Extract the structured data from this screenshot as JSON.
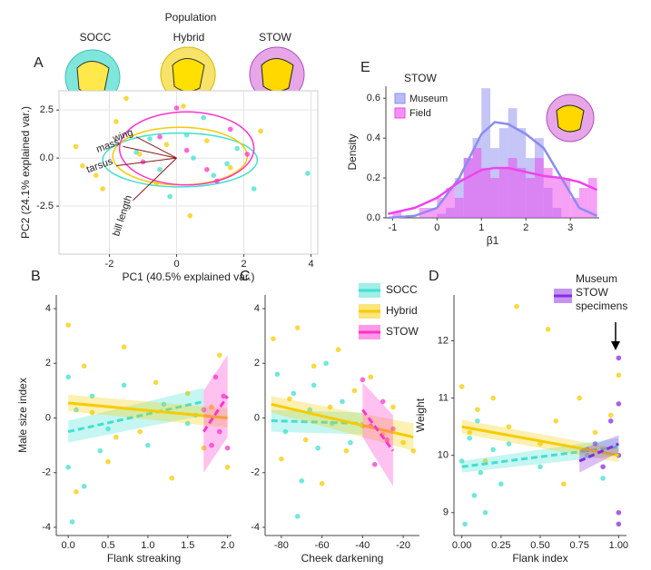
{
  "header": {
    "title": "Population",
    "groups": [
      "SOCC",
      "Hybrid",
      "STOW"
    ]
  },
  "chart_data": [
    {
      "type": "scatter",
      "label": "A",
      "xlabel": "PC1 (40.5% explained var.)",
      "ylabel": "PC2 (24.1% explained var.)",
      "xlim": [
        -3.5,
        4.2
      ],
      "xticks": [
        -2,
        0,
        2,
        4
      ],
      "ylim": [
        -5,
        3.5
      ],
      "yticks": [
        -2.5,
        {
          "value": 0,
          "label": "0.0"
        },
        2.5
      ],
      "grid": true,
      "series": [
        {
          "color": "#40e0d0",
          "x": [
            -1.2,
            -0.5,
            0.3,
            1.1,
            1.8,
            2.3,
            0.8,
            -0.2,
            1.5,
            3.9,
            0.5,
            -0.8
          ],
          "values": [
            0.3,
            -0.6,
            1.2,
            -0.9,
            0.5,
            -1.6,
            2.1,
            -2.0,
            -0.3,
            -0.8,
            0.0,
            1.0
          ],
          "ellipse": {
            "cx": 0.1,
            "cy": -0.1,
            "rx": 2.3,
            "ry": 1.4
          }
        },
        {
          "color": "#f5cc00",
          "x": [
            -3.0,
            -2.4,
            -1.8,
            -1.1,
            -0.6,
            0.2,
            0.9,
            1.6,
            -2.2,
            -1.5,
            0.4,
            2.5,
            -0.3,
            -2.8
          ],
          "values": [
            0.6,
            -0.9,
            1.9,
            0.2,
            -1.3,
            2.7,
            0.9,
            -0.5,
            -1.6,
            3.1,
            -3.0,
            1.4,
            0.7,
            -0.4
          ],
          "ellipse": {
            "cx": 0.1,
            "cy": 0.1,
            "rx": 2.0,
            "ry": 1.5
          }
        },
        {
          "color": "#ff33cc",
          "x": [
            -0.5,
            0.3,
            0.9,
            1.6,
            2.1,
            -1.0,
            0.0,
            1.2
          ],
          "values": [
            1.1,
            0.4,
            -0.6,
            1.5,
            0.2,
            -0.2,
            2.6,
            -1.2
          ],
          "ellipse": {
            "cx": 0.3,
            "cy": 0.5,
            "rx": 2.0,
            "ry": 1.9
          }
        }
      ],
      "loadings": [
        {
          "label": "wing",
          "x": -1.2,
          "y": 1.1
        },
        {
          "label": "mass",
          "x": -1.6,
          "y": 0.6
        },
        {
          "label": "tarsus",
          "x": -1.8,
          "y": -0.4
        },
        {
          "label": "bill length",
          "x": -1.3,
          "y": -2.2
        }
      ]
    },
    {
      "type": "histogram",
      "label": "E",
      "legend_title": "STOW",
      "xlabel": "β1",
      "ylabel": "Density",
      "xlim": [
        -1.15,
        3.65
      ],
      "xticks": [
        -1,
        0,
        1,
        2,
        3
      ],
      "ylim": [
        0,
        0.66
      ],
      "yticks": [
        {
          "value": 0,
          "label": "0.0"
        },
        0.2,
        0.4,
        0.6
      ],
      "bins": [
        -1.0,
        -0.8,
        -0.6,
        -0.4,
        -0.2,
        0.0,
        0.2,
        0.4,
        0.6,
        0.8,
        1.0,
        1.2,
        1.4,
        1.6,
        1.8,
        2.0,
        2.2,
        2.4,
        2.6,
        2.8,
        3.0,
        3.2,
        3.4,
        3.6
      ],
      "series": [
        {
          "name": "Museum",
          "color": "#8c8cf0",
          "values": [
            0,
            0,
            0,
            0,
            0,
            0.02,
            0.05,
            0.2,
            0.3,
            0.4,
            0.65,
            0.35,
            0.45,
            0.55,
            0.45,
            0.3,
            0.4,
            0.15,
            0.05,
            0,
            0,
            0,
            0
          ],
          "density": {
            "x": [
              -1.1,
              -0.5,
              0,
              0.5,
              1,
              1.3,
              1.6,
              2,
              2.4,
              2.8,
              3.2,
              3.6
            ],
            "y": [
              0,
              0.01,
              0.05,
              0.2,
              0.42,
              0.48,
              0.47,
              0.42,
              0.35,
              0.2,
              0.05,
              0.01
            ]
          }
        },
        {
          "name": "Field",
          "color": "#ee44ee",
          "values": [
            0.03,
            0,
            0,
            0.05,
            0.05,
            0.1,
            0.15,
            0.1,
            0.3,
            0.35,
            0.25,
            0.2,
            0.25,
            0.3,
            0.25,
            0.2,
            0.3,
            0.25,
            0.2,
            0.2,
            0.1,
            0.15,
            0.2
          ],
          "density": {
            "x": [
              -1.1,
              -0.5,
              0,
              0.5,
              1,
              1.3,
              1.6,
              2,
              2.4,
              2.8,
              3.2,
              3.6
            ],
            "y": [
              0.02,
              0.05,
              0.1,
              0.18,
              0.24,
              0.25,
              0.25,
              0.23,
              0.21,
              0.2,
              0.18,
              0.14
            ]
          }
        }
      ]
    },
    {
      "type": "scatter",
      "label": "B",
      "xlabel": "Flank streaking",
      "ylabel": "Male size index",
      "xlim": [
        -0.15,
        2.05
      ],
      "xticks": [
        {
          "value": 0,
          "label": "0.0"
        },
        0.5,
        {
          "value": 1,
          "label": "1.0"
        },
        1.5,
        {
          "value": 2,
          "label": "2.0"
        }
      ],
      "ylim": [
        -4.3,
        4.5
      ],
      "yticks": [
        -4,
        -2,
        0,
        2,
        4
      ],
      "series": [
        {
          "name": "SOCC",
          "color": "#40e0d0",
          "x": [
            0,
            0,
            0.1,
            0.2,
            0.3,
            0.5,
            0.7,
            1.0,
            1.2,
            1.5,
            1.6,
            0.05,
            0.4
          ],
          "values": [
            -1.8,
            1.5,
            0.3,
            -2.5,
            0.8,
            -0.4,
            1.2,
            -1.0,
            0.5,
            -0.2,
            0.1,
            -3.8,
            -1.2
          ],
          "fit": {
            "x": [
              0,
              1.7
            ],
            "y": [
              -0.5,
              0.6
            ],
            "se": [
              0.4,
              0.5
            ]
          }
        },
        {
          "name": "Hybrid",
          "color": "#f5cc00",
          "x": [
            0,
            0.1,
            0.2,
            0.3,
            0.5,
            0.7,
            0.9,
            1.1,
            1.3,
            1.5,
            1.7,
            1.9,
            2.0,
            1.8,
            0.6
          ],
          "values": [
            3.4,
            -2.7,
            1.9,
            0.2,
            -1.6,
            2.6,
            -0.5,
            1.3,
            -2.2,
            0.9,
            -1.1,
            2.3,
            -1.8,
            0.4,
            -0.7
          ],
          "fit": {
            "x": [
              0,
              2.0
            ],
            "y": [
              0.55,
              0.0
            ],
            "se": [
              0.3,
              0.35
            ]
          }
        },
        {
          "name": "STOW",
          "color": "#ff33cc",
          "x": [
            1.7,
            1.8,
            1.85,
            1.9,
            1.95,
            2.0
          ],
          "values": [
            0.3,
            -1.0,
            1.5,
            -0.5,
            0.8,
            -1.1
          ],
          "fit": {
            "x": [
              1.7,
              2.0
            ],
            "y": [
              -0.5,
              0.8
            ],
            "se": [
              1.5,
              1.5
            ]
          }
        }
      ]
    },
    {
      "type": "scatter",
      "label": "C",
      "xlabel": "Cheek darkening",
      "xlim": [
        -88,
        -12
      ],
      "xticks": [
        -80,
        -60,
        -40,
        -20
      ],
      "ylim": [
        -4.3,
        4.5
      ],
      "yticks": [
        -4,
        -2,
        0,
        2,
        4
      ],
      "series": [
        {
          "color": "#40e0d0",
          "x": [
            -82,
            -78,
            -74,
            -70,
            -66,
            -62,
            -58,
            -55,
            -50,
            -46,
            -72,
            -64
          ],
          "values": [
            1.6,
            -0.5,
            0.9,
            -2.3,
            0.3,
            -1.1,
            2.0,
            -0.2,
            0.6,
            -0.9,
            -3.6,
            1.2
          ],
          "fit": {
            "x": [
              -85,
              -40
            ],
            "y": [
              -0.1,
              -0.2
            ],
            "se": [
              0.4,
              0.4
            ]
          }
        },
        {
          "color": "#f5cc00",
          "x": [
            -84,
            -80,
            -76,
            -72,
            -68,
            -64,
            -60,
            -56,
            -52,
            -48,
            -44,
            -40,
            -36,
            -30,
            -25,
            -20,
            -15
          ],
          "values": [
            2.9,
            -1.5,
            0.7,
            3.3,
            -0.8,
            1.9,
            -2.4,
            0.4,
            2.5,
            -1.2,
            1.0,
            -0.3,
            1.5,
            -0.6,
            0.4,
            -0.9,
            -1.2
          ],
          "fit": {
            "x": [
              -85,
              -15
            ],
            "y": [
              0.5,
              -0.7
            ],
            "se": [
              0.3,
              0.5
            ]
          }
        },
        {
          "color": "#ff33cc",
          "x": [
            -40,
            -36,
            -34,
            -30,
            -28,
            -25
          ],
          "values": [
            1.4,
            -0.3,
            -1.7,
            0.6,
            -0.8,
            -0.4
          ],
          "fit": {
            "x": [
              -40,
              -25
            ],
            "y": [
              0.3,
              -1.2
            ],
            "se": [
              1.0,
              1.3
            ]
          }
        }
      ]
    },
    {
      "type": "scatter",
      "label": "D",
      "xlabel": "Flank index",
      "ylabel": "Weight",
      "xlim": [
        -0.05,
        1.05
      ],
      "xticks": [
        {
          "value": 0,
          "label": "0.00"
        },
        0.25,
        {
          "value": 0.5,
          "label": "0.50"
        },
        0.75,
        {
          "value": 1,
          "label": "1.00"
        }
      ],
      "ylim": [
        8.6,
        12.8
      ],
      "yticks": [
        9,
        10,
        11,
        12
      ],
      "series": [
        {
          "color": "#40e0d0",
          "x": [
            0,
            0.02,
            0.05,
            0.08,
            0.1,
            0.12,
            0.15,
            0.2,
            0.25,
            0.3,
            0.5,
            0.8,
            0.9
          ],
          "values": [
            9.9,
            8.8,
            10.3,
            9.3,
            10.6,
            9.7,
            9.0,
            10.1,
            9.5,
            10.2,
            9.8,
            10.0,
            9.6
          ],
          "fit": {
            "x": [
              0,
              1
            ],
            "y": [
              9.8,
              10.15
            ],
            "se": [
              0.1,
              0.15
            ]
          }
        },
        {
          "color": "#f5cc00",
          "x": [
            0,
            0.05,
            0.1,
            0.15,
            0.2,
            0.3,
            0.35,
            0.5,
            0.55,
            0.6,
            0.75,
            0.85,
            0.95,
            1.0,
            0.65
          ],
          "values": [
            11.2,
            10.4,
            10.8,
            9.9,
            11.0,
            10.5,
            12.6,
            10.2,
            12.2,
            10.6,
            11.0,
            10.4,
            10.7,
            11.4,
            9.5
          ],
          "fit": {
            "x": [
              0,
              1
            ],
            "y": [
              10.5,
              10.0
            ],
            "se": [
              0.12,
              0.12
            ]
          }
        },
        {
          "name": "Museum STOW specimens",
          "color": "#8a2be2",
          "x": [
            0.85,
            0.9,
            0.95,
            1.0,
            1.0,
            1.0,
            1.0,
            1.0,
            0.8
          ],
          "values": [
            10.2,
            9.8,
            10.6,
            11.7,
            9.0,
            10.0,
            8.8,
            10.9,
            10.1
          ],
          "fit": {
            "x": [
              0.75,
              1
            ],
            "y": [
              9.9,
              10.2
            ],
            "se": [
              0.2,
              0.15
            ]
          }
        }
      ]
    }
  ]
}
